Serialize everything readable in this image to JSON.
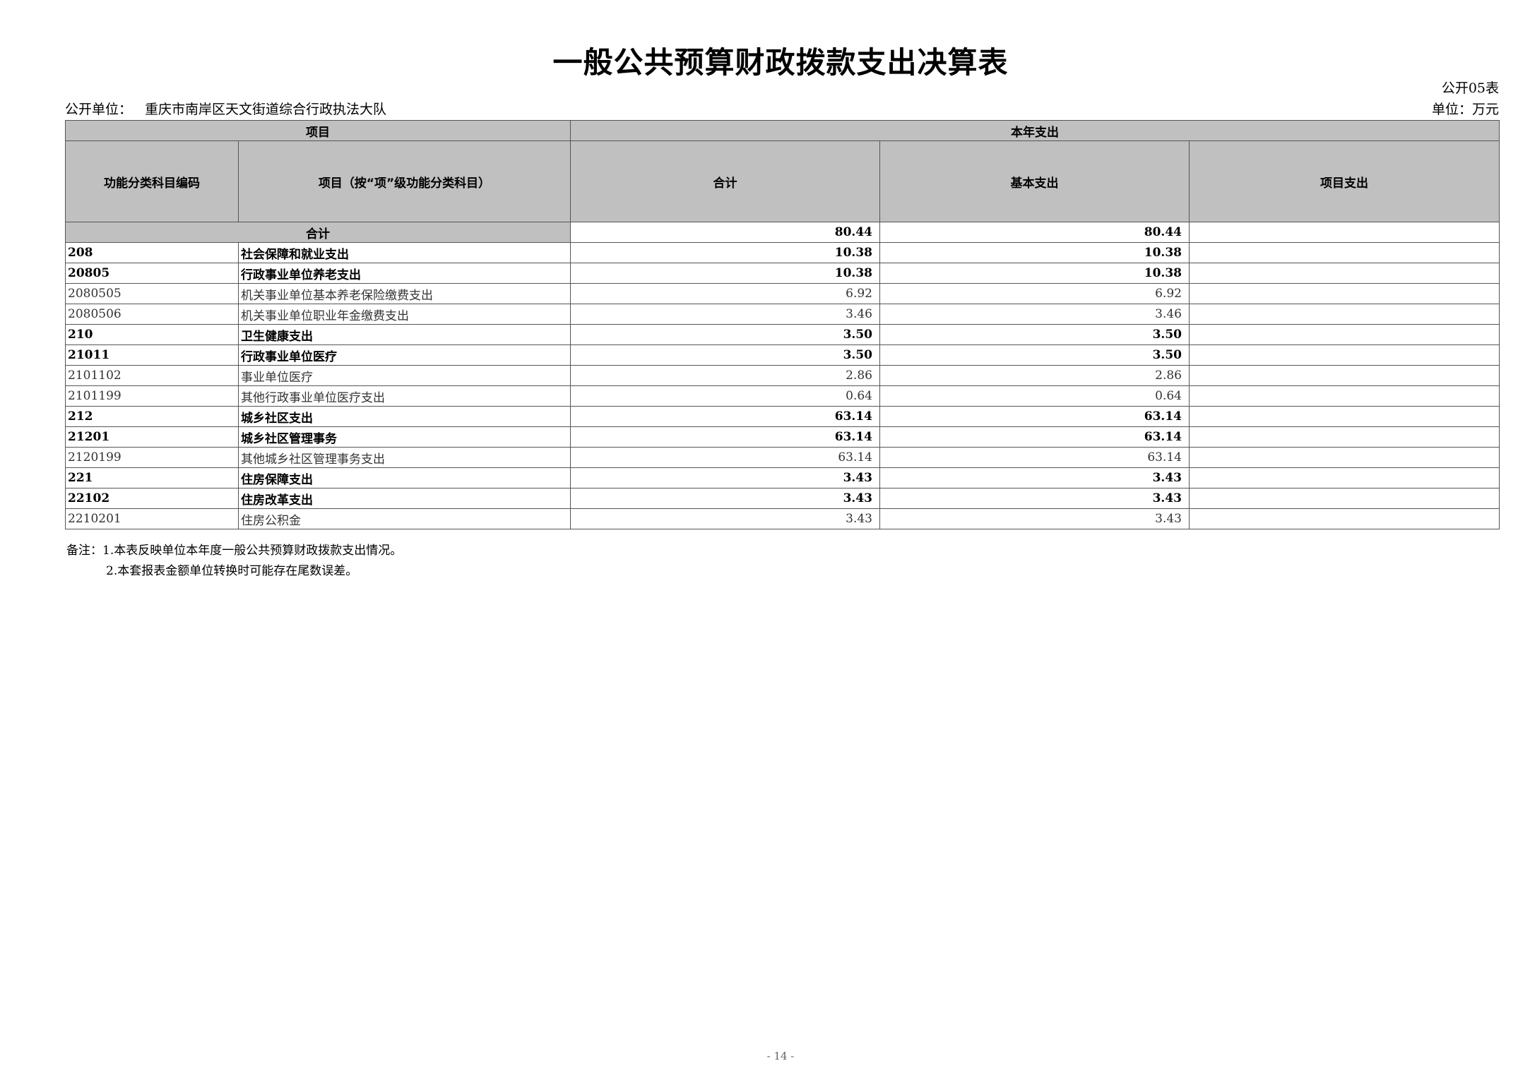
{
  "title": "一般公共预算财政拨款支出决算表",
  "form_no": "公开05表",
  "unit_label": "公开单位：",
  "unit_name": "重庆市南岸区天文街道综合行政执法大队",
  "currency": "单位：万元",
  "headers": {
    "item": "项目",
    "current_year": "本年支出",
    "code": "功能分类科目编码",
    "name": "项目（按“项”级功能分类科目）",
    "total": "合计",
    "basic": "基本支出",
    "project": "项目支出"
  },
  "total_row": {
    "label": "合计",
    "total": "80.44",
    "basic": "80.44",
    "project": ""
  },
  "rows": [
    {
      "code": "208",
      "name": "社会保障和就业支出",
      "total": "10.38",
      "basic": "10.38",
      "project": "",
      "bold": true
    },
    {
      "code": "20805",
      "name": "行政事业单位养老支出",
      "total": "10.38",
      "basic": "10.38",
      "project": "",
      "bold": true
    },
    {
      "code": "2080505",
      "name": "机关事业单位基本养老保险缴费支出",
      "total": "6.92",
      "basic": "6.92",
      "project": "",
      "bold": false
    },
    {
      "code": "2080506",
      "name": "机关事业单位职业年金缴费支出",
      "total": "3.46",
      "basic": "3.46",
      "project": "",
      "bold": false
    },
    {
      "code": "210",
      "name": "卫生健康支出",
      "total": "3.50",
      "basic": "3.50",
      "project": "",
      "bold": true
    },
    {
      "code": "21011",
      "name": "行政事业单位医疗",
      "total": "3.50",
      "basic": "3.50",
      "project": "",
      "bold": true
    },
    {
      "code": "2101102",
      "name": "事业单位医疗",
      "total": "2.86",
      "basic": "2.86",
      "project": "",
      "bold": false
    },
    {
      "code": "2101199",
      "name": "其他行政事业单位医疗支出",
      "total": "0.64",
      "basic": "0.64",
      "project": "",
      "bold": false
    },
    {
      "code": "212",
      "name": "城乡社区支出",
      "total": "63.14",
      "basic": "63.14",
      "project": "",
      "bold": true
    },
    {
      "code": "21201",
      "name": "城乡社区管理事务",
      "total": "63.14",
      "basic": "63.14",
      "project": "",
      "bold": true
    },
    {
      "code": "2120199",
      "name": "其他城乡社区管理事务支出",
      "total": "63.14",
      "basic": "63.14",
      "project": "",
      "bold": false
    },
    {
      "code": "221",
      "name": "住房保障支出",
      "total": "3.43",
      "basic": "3.43",
      "project": "",
      "bold": true
    },
    {
      "code": "22102",
      "name": "住房改革支出",
      "total": "3.43",
      "basic": "3.43",
      "project": "",
      "bold": true
    },
    {
      "code": "2210201",
      "name": "住房公积金",
      "total": "3.43",
      "basic": "3.43",
      "project": "",
      "bold": false
    }
  ],
  "notes": [
    "备注：1.本表反映单位本年度一般公共预算财政拨款支出情况。",
    "2.本套报表金额单位转换时可能存在尾数误差。"
  ],
  "page_no": "- 14 -"
}
